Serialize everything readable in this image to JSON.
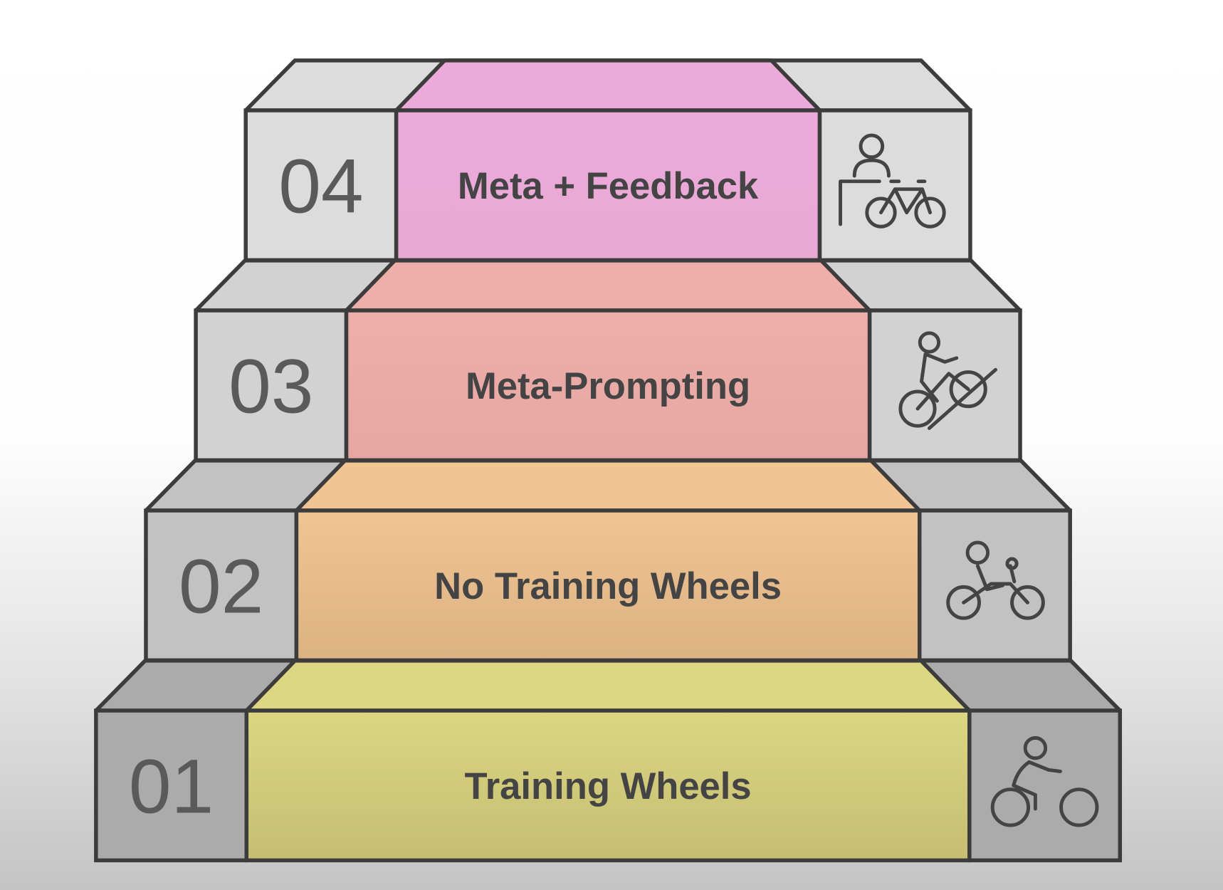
{
  "steps": [
    {
      "number": "01",
      "label": "Training Wheels",
      "color": "#dcd682",
      "color_dark": "#c6bd72",
      "icon": "cyclist-icon"
    },
    {
      "number": "02",
      "label": "No Training Wheels",
      "color": "#f0c493",
      "color_dark": "#ddb283",
      "icon": "child-cyclist-with-helper-icon"
    },
    {
      "number": "03",
      "label": "Meta-Prompting",
      "color": "#eeaeaa",
      "color_dark": "#e6a6a2",
      "icon": "cyclist-uphill-icon"
    },
    {
      "number": "04",
      "label": "Meta + Feedback",
      "color": "#ecaadb",
      "color_dark": "#e8a8d4",
      "icon": "person-with-bicycle-icon"
    }
  ],
  "block_grays": [
    "#ababab",
    "#c2c2c2",
    "#d2d2d2",
    "#dcdcdc"
  ],
  "outline_color": "#3c3c3c"
}
